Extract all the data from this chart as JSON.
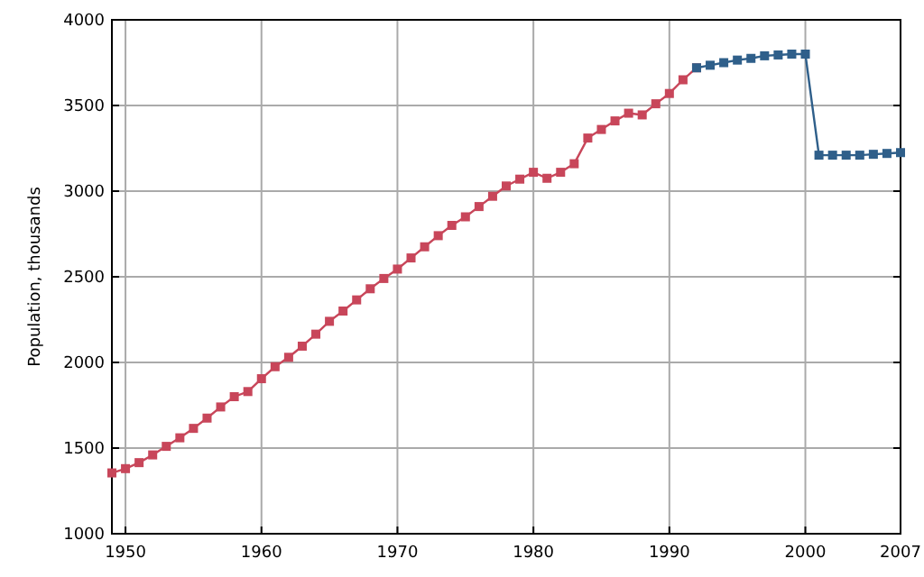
{
  "chart_data": {
    "type": "line",
    "ylabel": "Population, thousands",
    "x": [
      1949,
      1950,
      1951,
      1952,
      1953,
      1954,
      1955,
      1956,
      1957,
      1958,
      1959,
      1960,
      1961,
      1962,
      1963,
      1964,
      1965,
      1966,
      1967,
      1968,
      1969,
      1970,
      1971,
      1972,
      1973,
      1974,
      1975,
      1976,
      1977,
      1978,
      1979,
      1980,
      1981,
      1982,
      1983,
      1984,
      1985,
      1986,
      1987,
      1988,
      1989,
      1990,
      1991,
      1992
    ],
    "series": [
      {
        "color": "#c8465a",
        "values": [
          1355,
          1380,
          1415,
          1460,
          1510,
          1560,
          1615,
          1675,
          1740,
          1800,
          1830,
          1905,
          1975,
          2030,
          2095,
          2165,
          2240,
          2300,
          2365,
          2430,
          2490,
          2545,
          2610,
          2675,
          2740,
          2800,
          2850,
          2910,
          2970,
          3030,
          3070,
          3110,
          3075,
          3110,
          3160,
          3310,
          3360,
          3410,
          3455,
          3445,
          3510,
          3570,
          3650,
          3720
        ]
      },
      {
        "color": "#2f5f8a",
        "x": [
          1992,
          1993,
          1994,
          1995,
          1996,
          1997,
          1998,
          1999,
          2000,
          2001,
          2002,
          2003,
          2004,
          2005,
          2006,
          2007
        ],
        "values": [
          3720,
          3735,
          3750,
          3765,
          3775,
          3790,
          3795,
          3800,
          3800,
          3210,
          3210,
          3210,
          3210,
          3215,
          3220,
          3225
        ]
      }
    ],
    "xlim": [
      1949,
      2007
    ],
    "xticks": [
      1950,
      1960,
      1970,
      1980,
      1990,
      2000,
      2007
    ],
    "ylim": [
      1000,
      4000
    ],
    "yticks": [
      1000,
      1500,
      2000,
      2500,
      3000,
      3500,
      4000
    ],
    "grid": true,
    "marker": "square",
    "line_style": "solid"
  }
}
